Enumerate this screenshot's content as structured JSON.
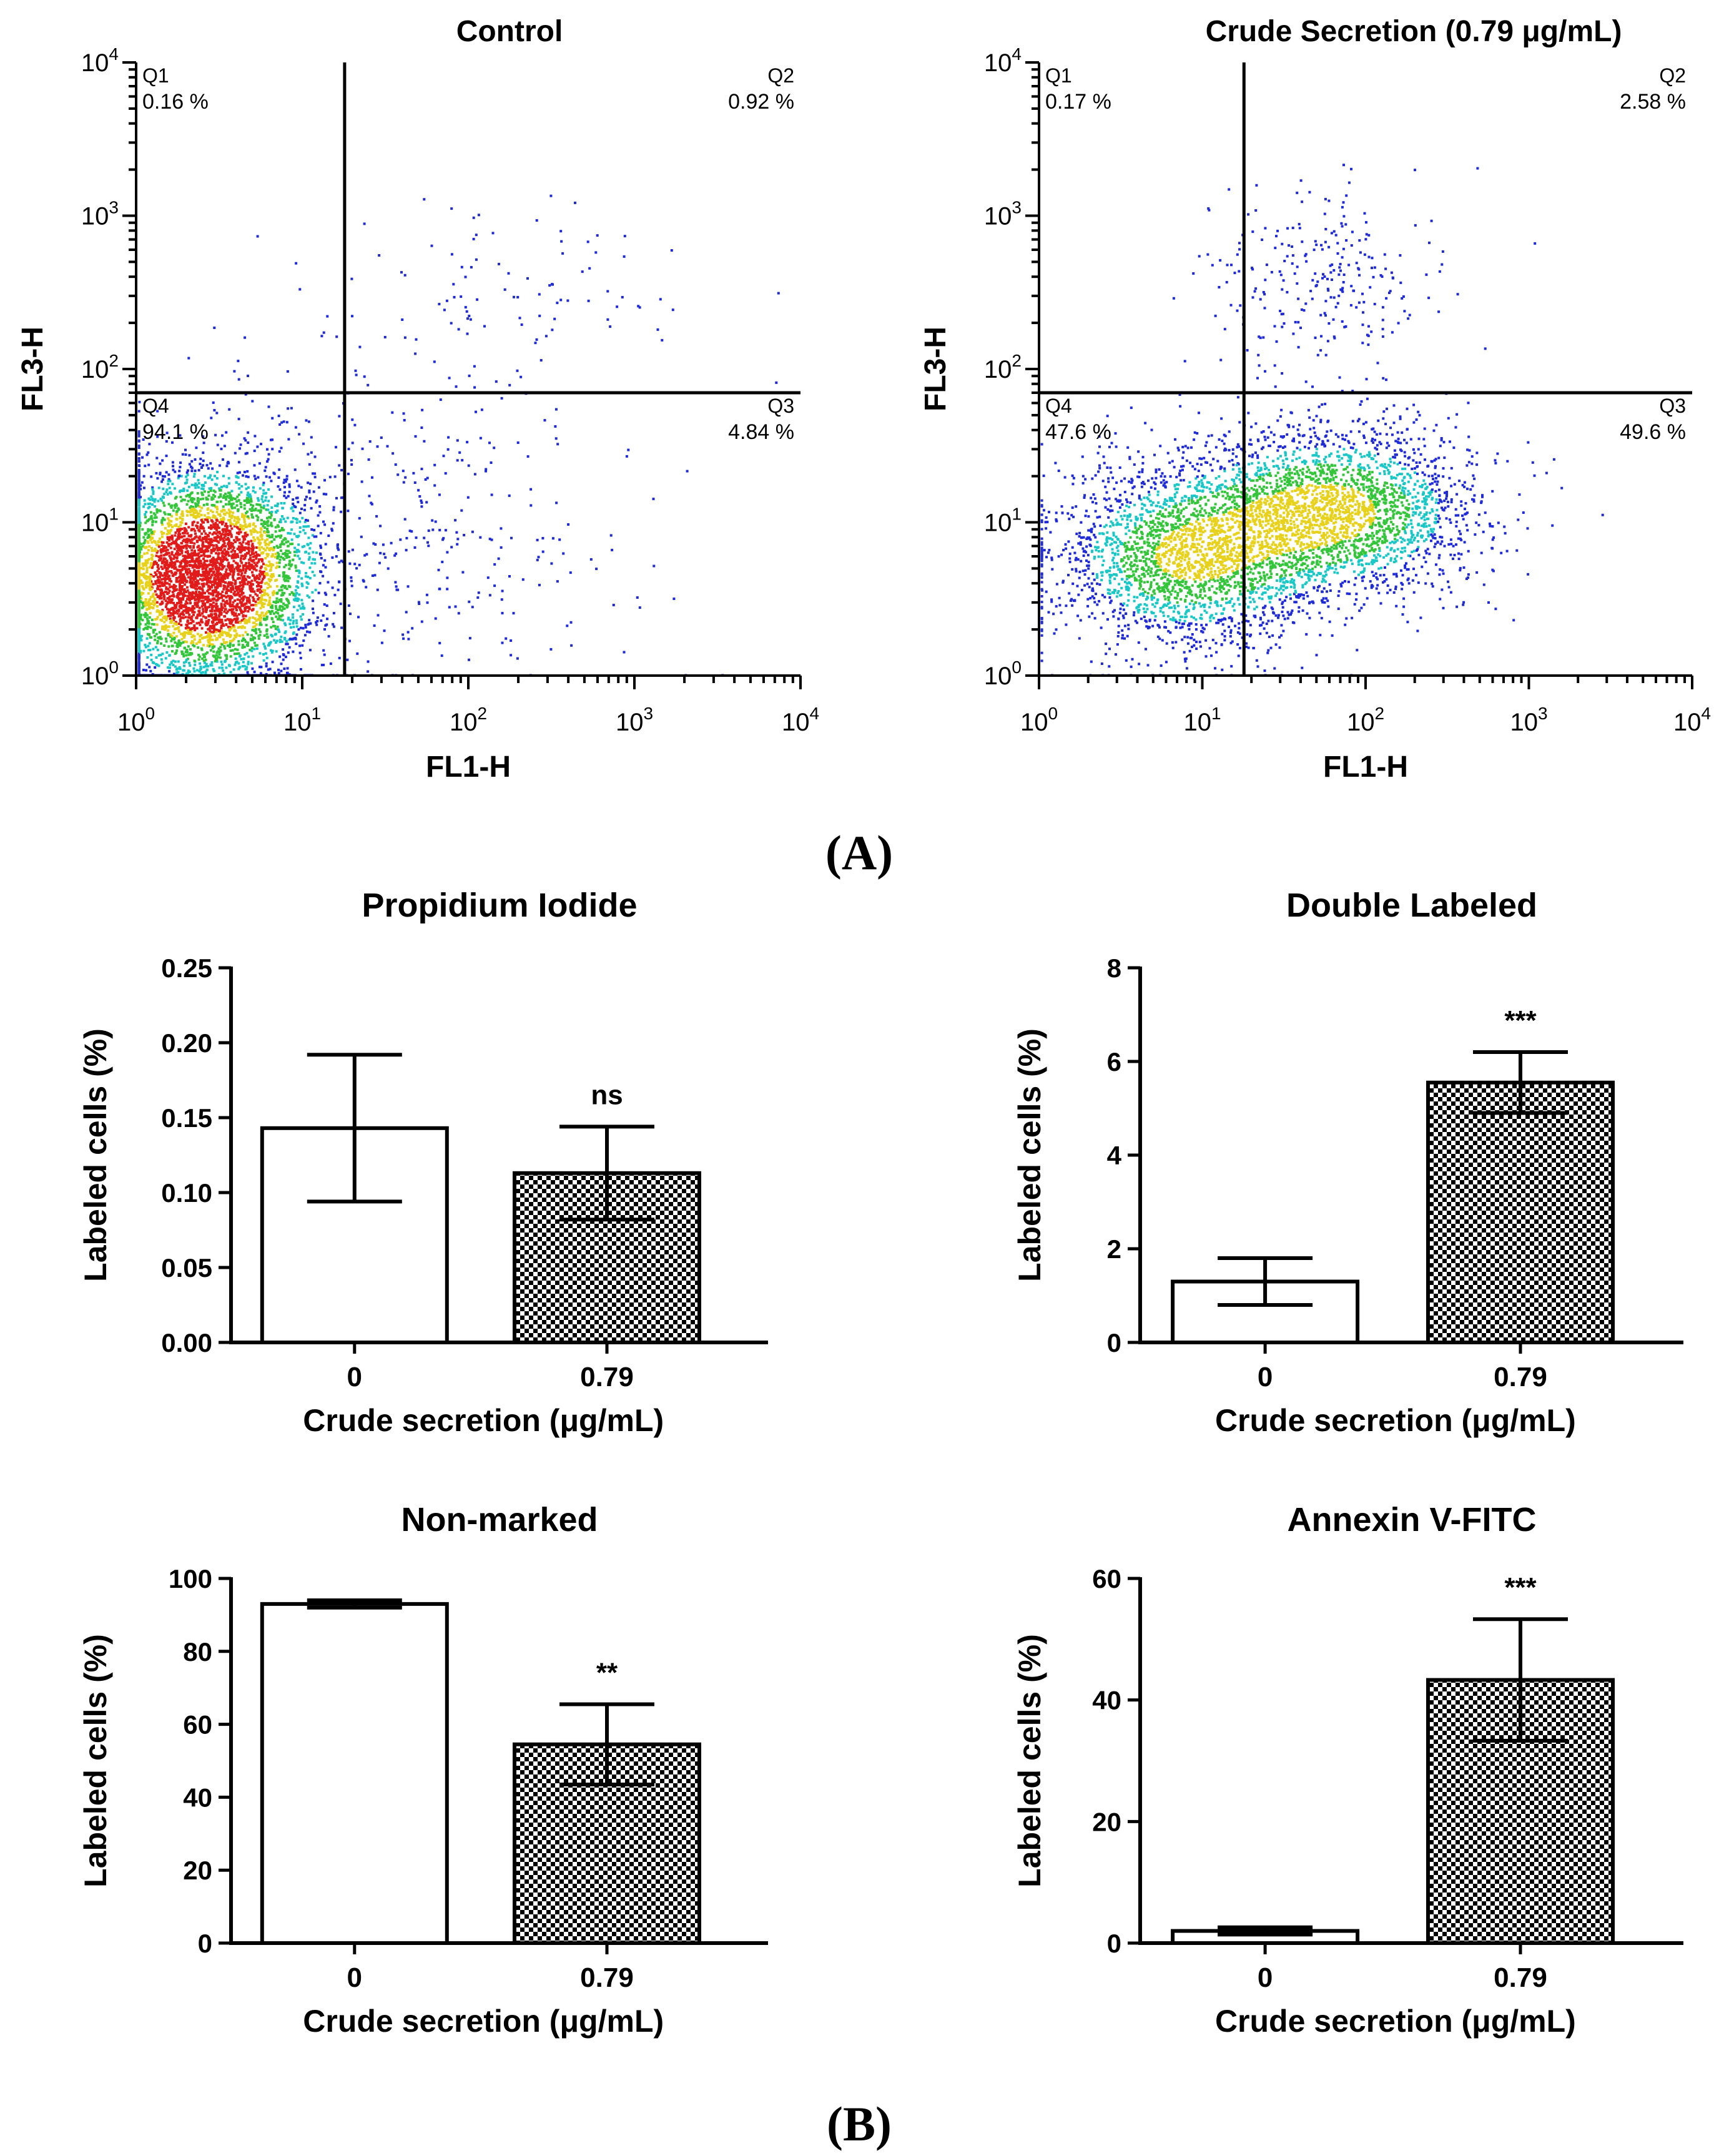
{
  "panel_labels": {
    "a": "(A)",
    "b": "(B)"
  },
  "colors": {
    "dot_sparse": "#1f2bd6",
    "dot_mid": "#19c7c7",
    "dot_dense_1": "#33c53a",
    "dot_dense_2": "#e8d11a",
    "dot_core": "#e11a1a",
    "axis": "#000000",
    "bar_open": "#ffffff",
    "bar_checker": "#000000"
  },
  "chart_data": [
    {
      "type": "scatter",
      "subtype": "flow-cytometry-density",
      "title": "Control",
      "xlabel": "FL1-H",
      "ylabel": "FL3-H",
      "x_scale": "log",
      "y_scale": "log",
      "x_ticks": [
        "10",
        "10",
        "10",
        "10",
        "10"
      ],
      "x_tick_exponents": [
        "0",
        "1",
        "2",
        "3",
        "4"
      ],
      "y_ticks": [
        "10",
        "10",
        "10",
        "10",
        "10"
      ],
      "y_tick_exponents": [
        "0",
        "1",
        "2",
        "3",
        "4"
      ],
      "gate": {
        "x": 18,
        "y": 70
      },
      "quadrants": [
        {
          "name": "Q1",
          "percent": "0.16 %"
        },
        {
          "name": "Q2",
          "percent": "0.92 %"
        },
        {
          "name": "Q4",
          "percent": "94.1 %"
        },
        {
          "name": "Q3",
          "percent": "4.84 %"
        }
      ],
      "populations": [
        {
          "center": [
            2.6,
            4.5
          ],
          "spread": [
            0.33,
            0.36
          ],
          "share": 0.9
        },
        {
          "center": [
            30,
            9
          ],
          "spread": [
            0.75,
            0.5
          ],
          "share": 0.08
        },
        {
          "center": [
            150,
            300
          ],
          "spread": [
            0.55,
            0.35
          ],
          "share": 0.02
        }
      ]
    },
    {
      "type": "scatter",
      "subtype": "flow-cytometry-density",
      "title": "Crude Secretion (0.79 μg/mL)",
      "xlabel": "FL1-H",
      "ylabel": "FL3-H",
      "x_scale": "log",
      "y_scale": "log",
      "x_ticks": [
        "10",
        "10",
        "10",
        "10",
        "10"
      ],
      "x_tick_exponents": [
        "0",
        "1",
        "2",
        "3",
        "4"
      ],
      "y_ticks": [
        "10",
        "10",
        "10",
        "10",
        "10"
      ],
      "y_tick_exponents": [
        "0",
        "1",
        "2",
        "3",
        "4"
      ],
      "gate": {
        "x": 18,
        "y": 70
      },
      "quadrants": [
        {
          "name": "Q1",
          "percent": "0.17 %"
        },
        {
          "name": "Q2",
          "percent": "2.58 %"
        },
        {
          "name": "Q4",
          "percent": "47.6 %"
        },
        {
          "name": "Q3",
          "percent": "49.6 %"
        }
      ],
      "populations": [
        {
          "center": [
            8,
            6
          ],
          "spread": [
            0.42,
            0.3
          ],
          "share": 0.45
        },
        {
          "center": [
            60,
            12
          ],
          "spread": [
            0.45,
            0.28
          ],
          "share": 0.5
        },
        {
          "center": [
            50,
            400
          ],
          "spread": [
            0.35,
            0.3
          ],
          "share": 0.05
        }
      ]
    },
    {
      "type": "bar",
      "title": "Propidium Iodide",
      "xlabel": "Crude secretion (μg/mL)",
      "ylabel": "Labeled cells (%)",
      "categories": [
        "0",
        "0.79"
      ],
      "values": [
        0.143,
        0.113
      ],
      "errors": [
        0.049,
        0.031
      ],
      "ylim": [
        0,
        0.25
      ],
      "yticks": [
        "0.00",
        "0.05",
        "0.10",
        "0.15",
        "0.20",
        "0.25"
      ],
      "significance": [
        "",
        "ns"
      ]
    },
    {
      "type": "bar",
      "title": "Double Labeled",
      "xlabel": "Crude secretion (μg/mL)",
      "ylabel": "Labeled cells (%)",
      "categories": [
        "0",
        "0.79"
      ],
      "values": [
        1.3,
        5.55
      ],
      "errors": [
        0.5,
        0.65
      ],
      "ylim": [
        0,
        8
      ],
      "yticks": [
        "0",
        "2",
        "4",
        "6",
        "8"
      ],
      "significance": [
        "",
        "***"
      ]
    },
    {
      "type": "bar",
      "title": "Non-marked",
      "xlabel": "Crude secretion (μg/mL)",
      "ylabel": "Labeled cells (%)",
      "categories": [
        "0",
        "0.79"
      ],
      "values": [
        93,
        54.5
      ],
      "errors": [
        1.0,
        11
      ],
      "ylim": [
        0,
        100
      ],
      "yticks": [
        "0",
        "20",
        "40",
        "60",
        "80",
        "100"
      ],
      "significance": [
        "",
        "**"
      ]
    },
    {
      "type": "bar",
      "title": "Annexin V-FITC",
      "xlabel": "Crude secretion (μg/mL)",
      "ylabel": "Labeled cells (%)",
      "categories": [
        "0",
        "0.79"
      ],
      "values": [
        2.0,
        43.3
      ],
      "errors": [
        0.6,
        10
      ],
      "ylim": [
        0,
        60
      ],
      "yticks": [
        "0",
        "20",
        "40",
        "60"
      ],
      "significance": [
        "",
        "***"
      ]
    }
  ]
}
